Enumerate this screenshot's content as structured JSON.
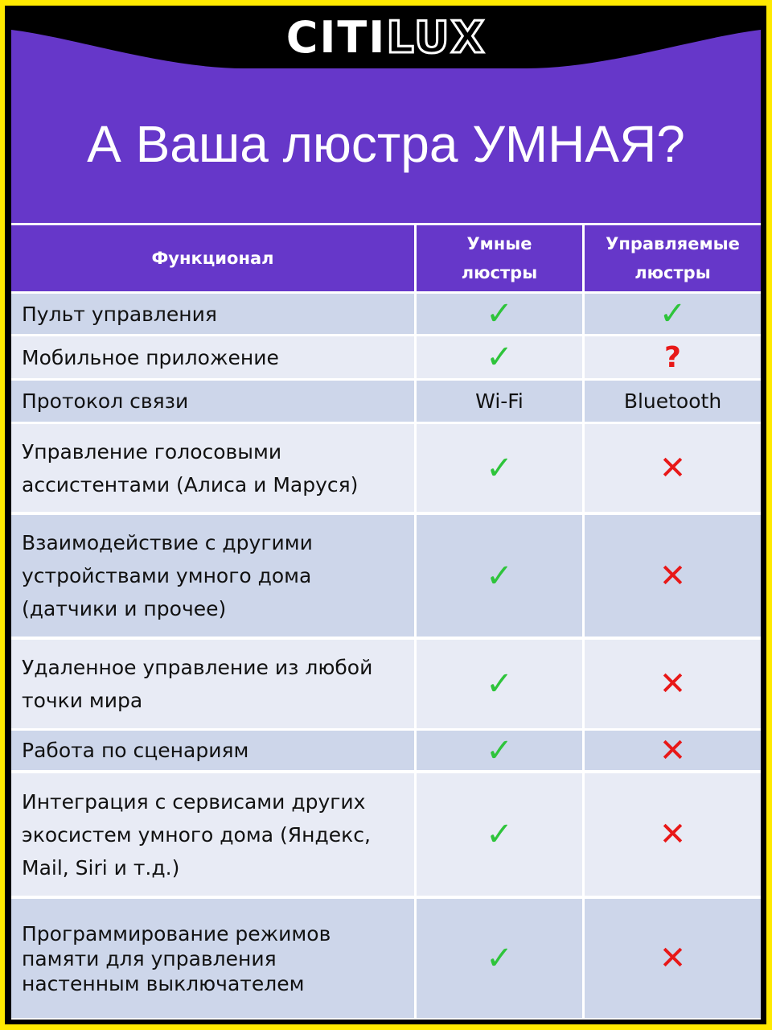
{
  "brand": {
    "logo_part1": "CITI",
    "logo_part2": "LUX"
  },
  "title": "А Ваша люстра УМНАЯ?",
  "colors": {
    "purple": "#6637c9",
    "yellow": "#ffea00",
    "check": "#2ec43b",
    "cross": "#e81818"
  },
  "table": {
    "headers": [
      "Функционал",
      "Умные\nлюстры",
      "Управляемые\nлюстры"
    ],
    "rows": [
      {
        "feature": "Пульт управления",
        "smart": "check-icon",
        "controlled": "check-icon"
      },
      {
        "feature": "Мобильное приложение",
        "smart": "check-icon",
        "controlled": "question-icon"
      },
      {
        "feature": "Протокол связи",
        "smart": "Wi-Fi",
        "controlled": "Bluetooth"
      },
      {
        "feature": "Управление голосовыми ассистентами (Алиса и Маруся)",
        "smart": "check-icon",
        "controlled": "cross-icon"
      },
      {
        "feature": "Взаимодействие с другими устройствами умного дома (датчики и прочее)",
        "smart": "check-icon",
        "controlled": "cross-icon"
      },
      {
        "feature": "Удаленное управление из любой точки мира",
        "smart": "check-icon",
        "controlled": "cross-icon"
      },
      {
        "feature": "Работа по сценариям",
        "smart": "check-icon",
        "controlled": "cross-icon"
      },
      {
        "feature": "Интеграция с сервисами других экосистем умного дома (Яндекс, Mail, Siri и т.д.)",
        "smart": "check-icon",
        "controlled": "cross-icon"
      },
      {
        "feature": "Программирование режимов памяти для управления настенным выключателем",
        "smart": "check-icon",
        "controlled": "cross-icon"
      }
    ]
  }
}
